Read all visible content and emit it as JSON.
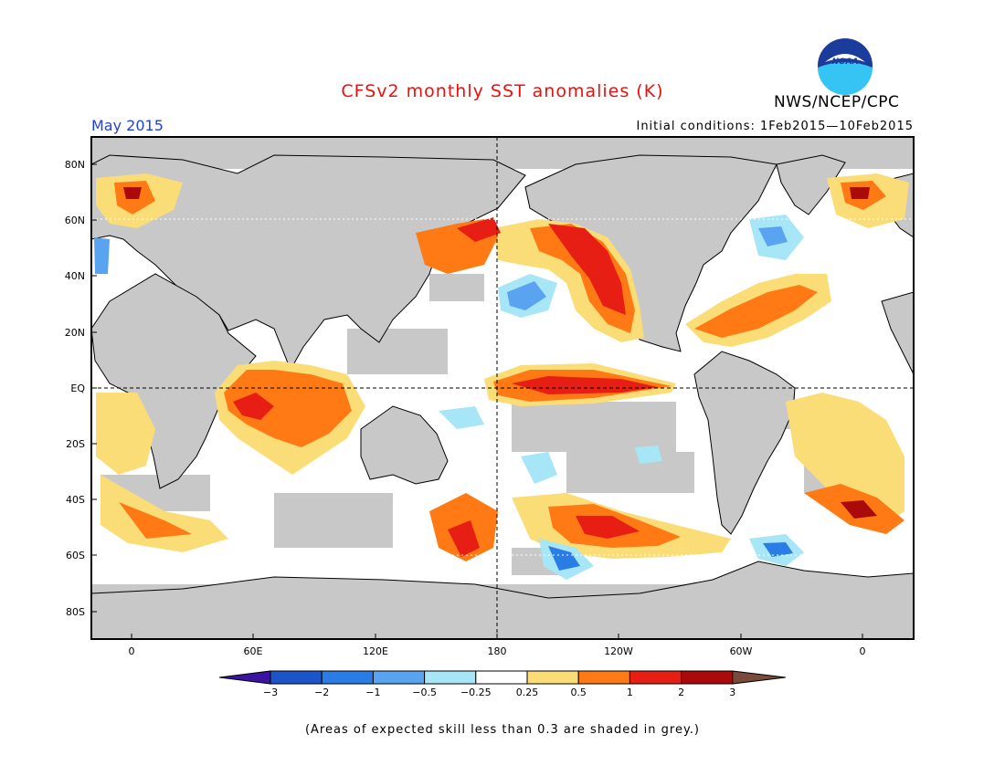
{
  "header": {
    "title": "CFSv2 monthly SST anomalies (K)",
    "month": "May 2015",
    "agency": "NWS/NCEP/CPC",
    "initial_conditions": "Initial conditions: 1Feb2015—10Feb2015",
    "logo_text": "NOAA"
  },
  "map": {
    "lat_labels": [
      "80N",
      "60N",
      "40N",
      "20N",
      "EQ",
      "20S",
      "40S",
      "60S",
      "80S"
    ],
    "lon_labels": [
      "0",
      "60E",
      "120E",
      "180",
      "120W",
      "60W",
      "0"
    ],
    "land_color": "#c8c8c8",
    "skill_grey_color": "#c8c8c8"
  },
  "colorbar": {
    "labels": [
      "−3",
      "−2",
      "−1",
      "−0.5",
      "−0.25",
      "0.25",
      "0.5",
      "1",
      "2",
      "3"
    ],
    "colors": [
      "#3a14a0",
      "#1c55c8",
      "#2b7de6",
      "#5aa3f0",
      "#a6e6f6",
      "#ffffff",
      "#fbdd78",
      "#ff7a14",
      "#e61e14",
      "#aa0a0a",
      "#7a4a3a"
    ]
  },
  "footer": {
    "skill_note": "(Areas of expected skill less than 0.3 are shaded in grey.)"
  }
}
